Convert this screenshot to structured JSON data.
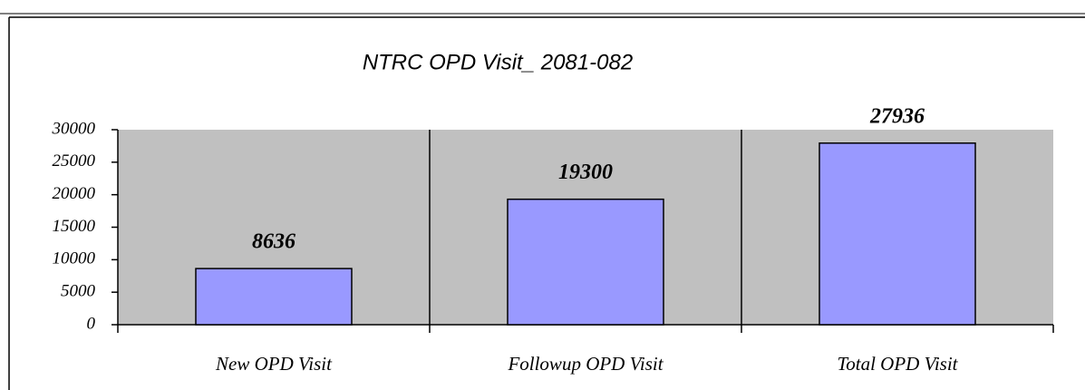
{
  "chart_data": {
    "type": "bar",
    "title": "NTRC OPD Visit_ 2081-082",
    "categories": [
      "New OPD Visit",
      "Followup OPD Visit",
      "Total OPD Visit"
    ],
    "values": [
      8636,
      19300,
      27936
    ],
    "color": "#9999ff",
    "ylim": [
      0,
      30000
    ],
    "yticks": [
      0,
      5000,
      10000,
      15000,
      20000,
      25000,
      30000
    ],
    "grid": false
  }
}
